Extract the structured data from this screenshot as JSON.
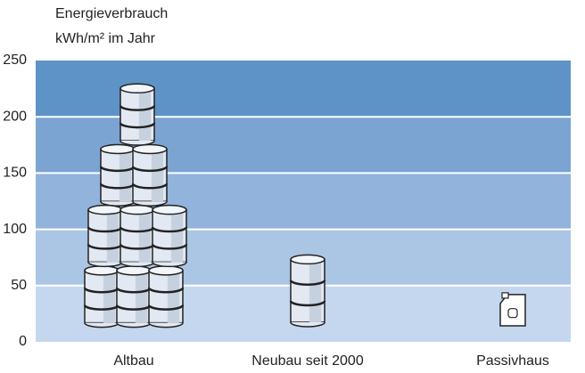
{
  "chart_data": {
    "type": "pictogram",
    "title": "Energieverbrauch",
    "y_label": "kWh/m² im Jahr",
    "categories": [
      "Altbau",
      "Neubau seit 2000",
      "Passivhaus"
    ],
    "values": [
      230,
      78,
      42
    ],
    "ylim": [
      0,
      250
    ],
    "yticks": [
      0,
      50,
      100,
      150,
      200,
      250
    ],
    "band_colors": [
      "#c5d7ee",
      "#abc5e5",
      "#92b3dc",
      "#7ca4d3",
      "#5e93c8"
    ],
    "grid": true
  }
}
